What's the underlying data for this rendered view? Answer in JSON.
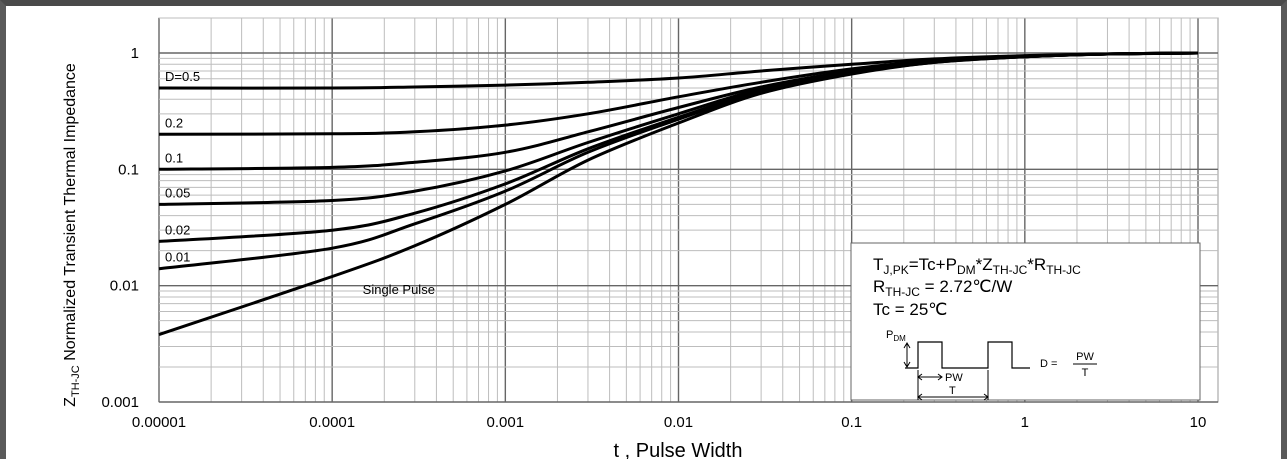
{
  "chart_data": {
    "type": "line",
    "x_scale": "log",
    "y_scale": "log",
    "xlim": [
      1e-05,
      10
    ],
    "ylim": [
      0.001,
      1
    ],
    "xlabel": "t , Pulse Width",
    "ylabel_main": "Z",
    "ylabel_sub": "TH-JC",
    "ylabel_rest": " Normalized Transient Thermal Impedance",
    "grid": true,
    "x_ticks": [
      {
        "v": 1e-05,
        "label": "0.00001"
      },
      {
        "v": 0.0001,
        "label": "0.0001"
      },
      {
        "v": 0.001,
        "label": "0.001"
      },
      {
        "v": 0.01,
        "label": "0.01"
      },
      {
        "v": 0.1,
        "label": "0.1"
      },
      {
        "v": 1,
        "label": "1"
      },
      {
        "v": 10,
        "label": "10"
      }
    ],
    "y_ticks": [
      {
        "v": 0.001,
        "label": "0.001"
      },
      {
        "v": 0.01,
        "label": "0.01"
      },
      {
        "v": 0.1,
        "label": "0.1"
      },
      {
        "v": 1,
        "label": "1"
      }
    ],
    "series": [
      {
        "name": "D=0.5",
        "x": [
          1e-05,
          0.0001,
          0.0003,
          0.001,
          0.003,
          0.01,
          0.03,
          0.1,
          0.3,
          1,
          3,
          10
        ],
        "y": [
          0.5,
          0.5,
          0.51,
          0.53,
          0.56,
          0.61,
          0.7,
          0.8,
          0.89,
          0.95,
          0.98,
          1.0
        ]
      },
      {
        "name": "0.2",
        "x": [
          1e-05,
          0.0001,
          0.0003,
          0.001,
          0.003,
          0.01,
          0.03,
          0.1,
          0.3,
          1,
          3,
          10
        ],
        "y": [
          0.2,
          0.202,
          0.21,
          0.24,
          0.3,
          0.42,
          0.56,
          0.73,
          0.86,
          0.94,
          0.98,
          1.0
        ]
      },
      {
        "name": "0.1",
        "x": [
          1e-05,
          0.0001,
          0.0003,
          0.001,
          0.003,
          0.01,
          0.03,
          0.1,
          0.3,
          1,
          3,
          10
        ],
        "y": [
          0.1,
          0.104,
          0.115,
          0.14,
          0.21,
          0.34,
          0.51,
          0.7,
          0.85,
          0.93,
          0.98,
          1.0
        ]
      },
      {
        "name": "0.05",
        "x": [
          1e-05,
          0.0001,
          0.0003,
          0.001,
          0.003,
          0.01,
          0.03,
          0.1,
          0.3,
          1,
          3,
          10
        ],
        "y": [
          0.05,
          0.054,
          0.065,
          0.097,
          0.17,
          0.3,
          0.49,
          0.69,
          0.84,
          0.93,
          0.98,
          1.0
        ]
      },
      {
        "name": "0.02",
        "x": [
          1e-05,
          0.0001,
          0.0003,
          0.001,
          0.003,
          0.01,
          0.03,
          0.1,
          0.3,
          1,
          3,
          10
        ],
        "y": [
          0.024,
          0.03,
          0.042,
          0.075,
          0.15,
          0.28,
          0.47,
          0.68,
          0.84,
          0.93,
          0.98,
          1.0
        ]
      },
      {
        "name": "0.01",
        "x": [
          1e-05,
          0.0001,
          0.0003,
          0.001,
          0.003,
          0.01,
          0.03,
          0.1,
          0.3,
          1,
          3,
          10
        ],
        "y": [
          0.014,
          0.021,
          0.034,
          0.065,
          0.14,
          0.27,
          0.46,
          0.67,
          0.83,
          0.93,
          0.98,
          1.0
        ]
      },
      {
        "name": "Single Pulse",
        "x": [
          1e-05,
          0.0001,
          0.0003,
          0.001,
          0.003,
          0.01,
          0.03,
          0.1,
          0.3,
          1,
          3,
          10
        ],
        "y": [
          0.0038,
          0.012,
          0.022,
          0.05,
          0.12,
          0.25,
          0.45,
          0.66,
          0.83,
          0.93,
          0.98,
          1.0
        ]
      }
    ],
    "curve_labels": [
      {
        "text": "D=0.5",
        "series": "D=0.5"
      },
      {
        "text": "0.2",
        "series": "0.2"
      },
      {
        "text": "0.1",
        "series": "0.1"
      },
      {
        "text": "0.05",
        "series": "0.05"
      },
      {
        "text": "0.02",
        "series": "0.02"
      },
      {
        "text": "0.01",
        "series": "0.01"
      },
      {
        "text": "Single Pulse",
        "series": "Single Pulse"
      }
    ],
    "annotation": {
      "formula_a": "T",
      "formula_a_sub": "J,PK",
      "formula_b": "=Tc+P",
      "formula_b_sub": "DM",
      "formula_c": "*Z",
      "formula_c_sub": "TH-JC",
      "formula_d": "*R",
      "formula_d_sub": "TH-JC",
      "rth_main": "R",
      "rth_sub": "TH-JC",
      "rth_rest": " = 2.72℃/W",
      "tc": "Tc = 25℃",
      "pdm_main": "P",
      "pdm_sub": "DM",
      "pw": "PW",
      "t": "T",
      "d_eq": "D = ",
      "d_num": "PW",
      "d_den": "T"
    }
  }
}
